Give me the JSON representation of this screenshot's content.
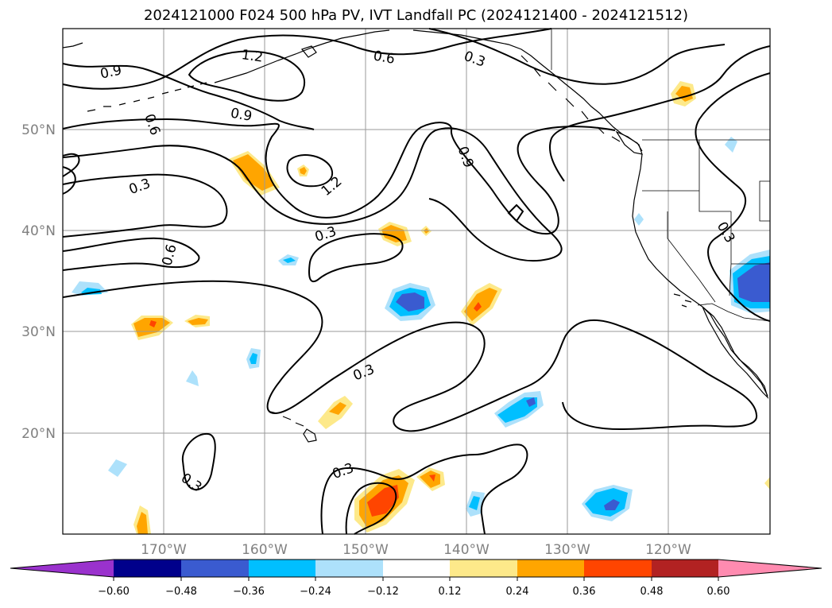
{
  "title": "2024121000 F024 500 hPa PV, IVT Landfall PC (2024121400 - 2024121512)",
  "colors": {
    "pos_012": "#fde98a",
    "pos_024": "#ffa500",
    "pos_036": "#ff4500",
    "pos_048": "#b22222",
    "pos_060": "#ff8bb0",
    "neg_012": "#ade1fb",
    "neg_024": "#00bfff",
    "neg_036": "#3a5bd0",
    "neg_048": "#00008b",
    "neg_060": "#9a32cd",
    "grid": "#9a9a9a",
    "tick_label": "#808080"
  },
  "map": {
    "lon_ticks": [
      "170°W",
      "160°W",
      "150°W",
      "140°W",
      "130°W",
      "120°W"
    ],
    "lat_ticks": [
      "50°N",
      "40°N",
      "30°N",
      "20°N"
    ]
  },
  "contour_labels": [
    "0.3",
    "0.6",
    "0.9",
    "1.2"
  ],
  "colorbar": {
    "ticks": [
      "−0.60",
      "−0.48",
      "−0.36",
      "−0.24",
      "−0.12",
      "0.12",
      "0.24",
      "0.36",
      "0.48",
      "0.60"
    ],
    "extend": "both"
  }
}
